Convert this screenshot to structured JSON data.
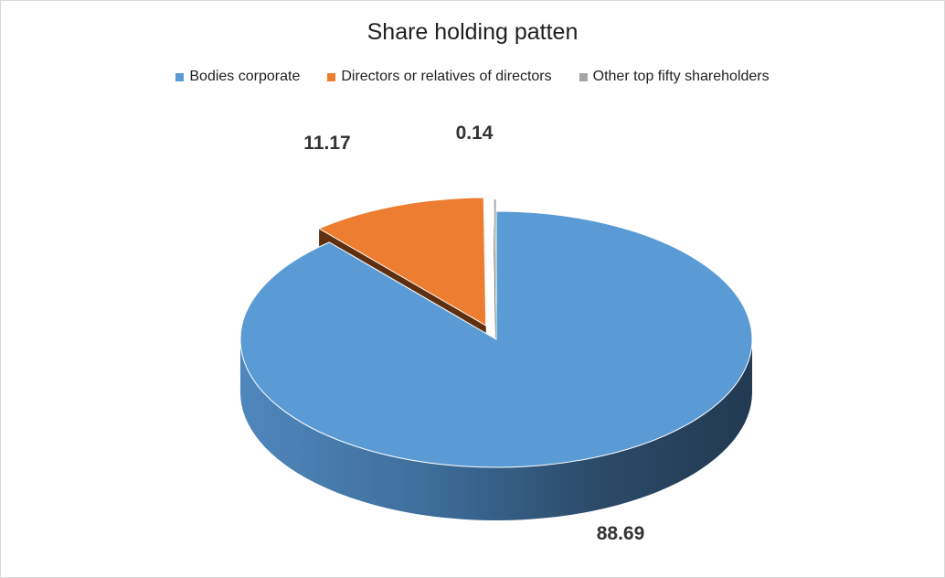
{
  "chart_data": {
    "type": "pie",
    "title": "Share holding patten",
    "legend_position": "top",
    "slices": [
      {
        "name": "Bodies corporate",
        "value": 88.69,
        "label": "88.69",
        "color": "#5b9bd5",
        "side_color_dark": "#223a52",
        "side_color_light": "#4f87bd"
      },
      {
        "name": "Directors or relatives of directors",
        "value": 11.17,
        "label": "11.17",
        "color": "#ed7d31",
        "side_color_dark": "#5e3010",
        "side_color_light": "#6a3613"
      },
      {
        "name": "Other top fifty shareholders",
        "value": 0.14,
        "label": "0.14",
        "color": "#a5a5a5",
        "side_color_dark": "#4a4a4a",
        "side_color_light": "#5a5a5a"
      }
    ]
  }
}
